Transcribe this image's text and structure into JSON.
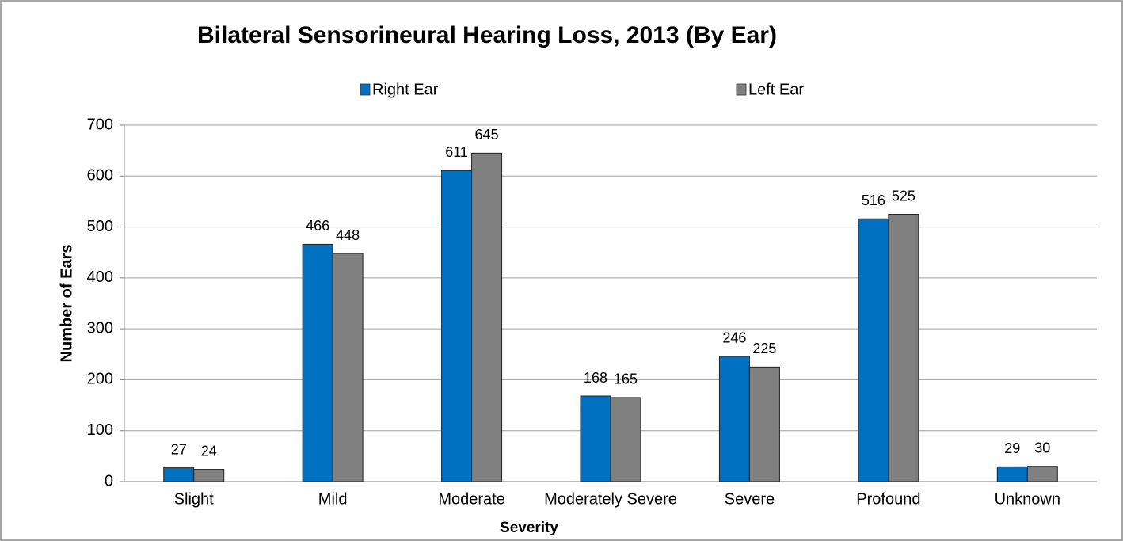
{
  "chart_data": {
    "type": "bar",
    "title": "Bilateral Sensorineural Hearing Loss, 2013 (By Ear)",
    "x_label": "Severity",
    "y_label": "Number of Ears",
    "categories": [
      "Slight",
      "Mild",
      "Moderate",
      "Moderately Severe",
      "Severe",
      "Profound",
      "Unknown"
    ],
    "series": [
      {
        "name": "Right Ear",
        "color": "#0070c0",
        "values": [
          27,
          466,
          611,
          168,
          246,
          516,
          29
        ]
      },
      {
        "name": "Left Ear",
        "color": "#808080",
        "values": [
          24,
          448,
          645,
          165,
          225,
          525,
          30
        ]
      }
    ],
    "ylim": [
      0,
      700
    ],
    "yticks": [
      0,
      100,
      200,
      300,
      400,
      500,
      600,
      700
    ],
    "grid": true,
    "legend": "top"
  }
}
